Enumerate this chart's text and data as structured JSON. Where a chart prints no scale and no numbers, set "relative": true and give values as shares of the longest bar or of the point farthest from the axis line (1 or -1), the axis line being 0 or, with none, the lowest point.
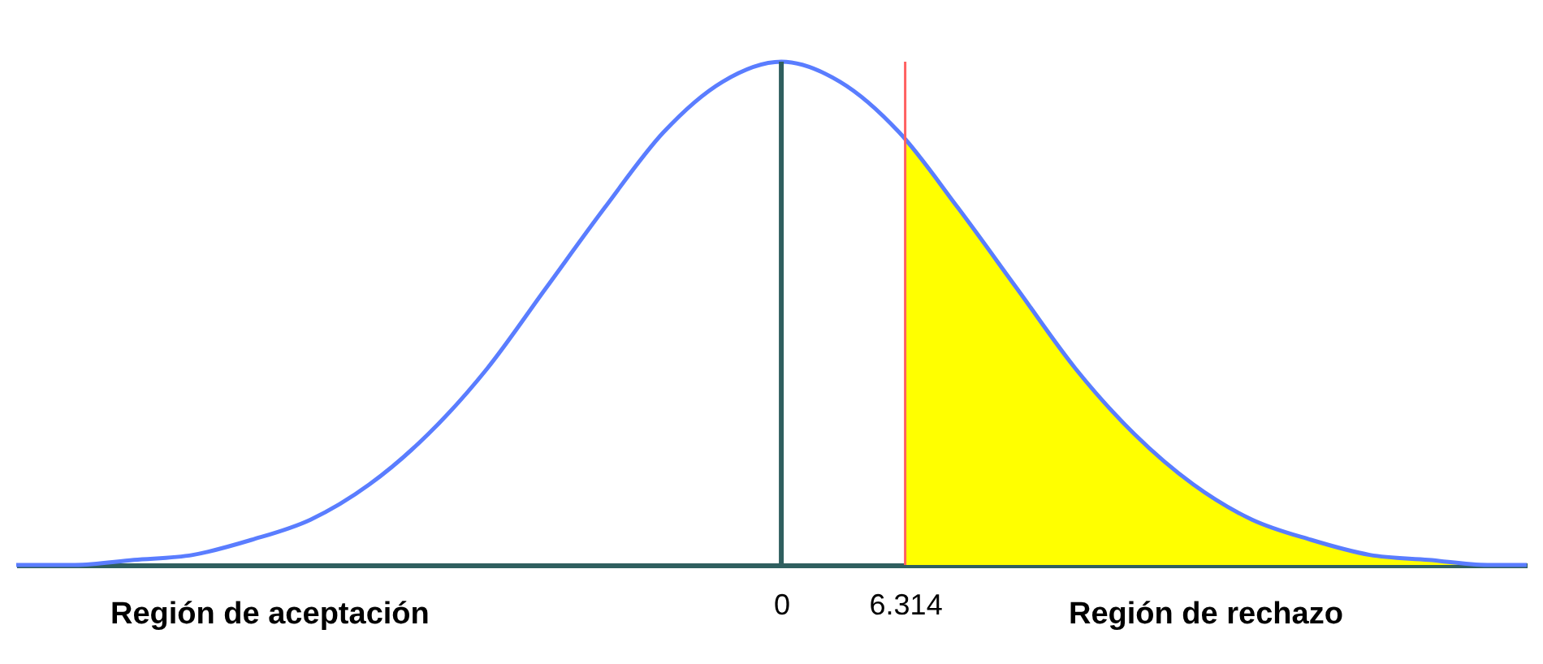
{
  "chart_data": {
    "type": "line",
    "relative": true,
    "xlim": [
      -39,
      38
    ],
    "xticks": [
      0,
      6.314
    ],
    "series": [
      {
        "type": "area",
        "color": "#ffff00",
        "x": [
          6.314,
          9,
          12,
          15,
          18,
          21,
          24,
          27,
          30,
          33,
          36,
          38
        ],
        "values": [
          0.85,
          0.71,
          0.55,
          0.39,
          0.26,
          0.16,
          0.09,
          0.05,
          0.02,
          0.01,
          0.0,
          0.0
        ]
      },
      {
        "color": "#5a7dff",
        "x": [
          -39,
          -36,
          -33,
          -30,
          -27,
          -24,
          -21,
          -18,
          -15,
          -12,
          -9,
          -6,
          -3,
          0,
          3,
          6,
          9,
          12,
          15,
          18,
          21,
          24,
          27,
          30,
          33,
          36,
          38
        ],
        "values": [
          0.0,
          0.0,
          0.01,
          0.02,
          0.05,
          0.09,
          0.16,
          0.26,
          0.39,
          0.55,
          0.71,
          0.86,
          0.96,
          1,
          0.96,
          0.86,
          0.71,
          0.55,
          0.39,
          0.26,
          0.16,
          0.09,
          0.05,
          0.02,
          0.01,
          0.0,
          0.0
        ]
      }
    ],
    "ref_lines": [
      {
        "axis": "x",
        "value": 0,
        "color": "#2f5f5f"
      },
      {
        "axis": "x",
        "value": 6.314,
        "color": "#ff6060"
      }
    ],
    "annotations": [
      "Región de aceptación",
      "Región de rechazo"
    ]
  }
}
